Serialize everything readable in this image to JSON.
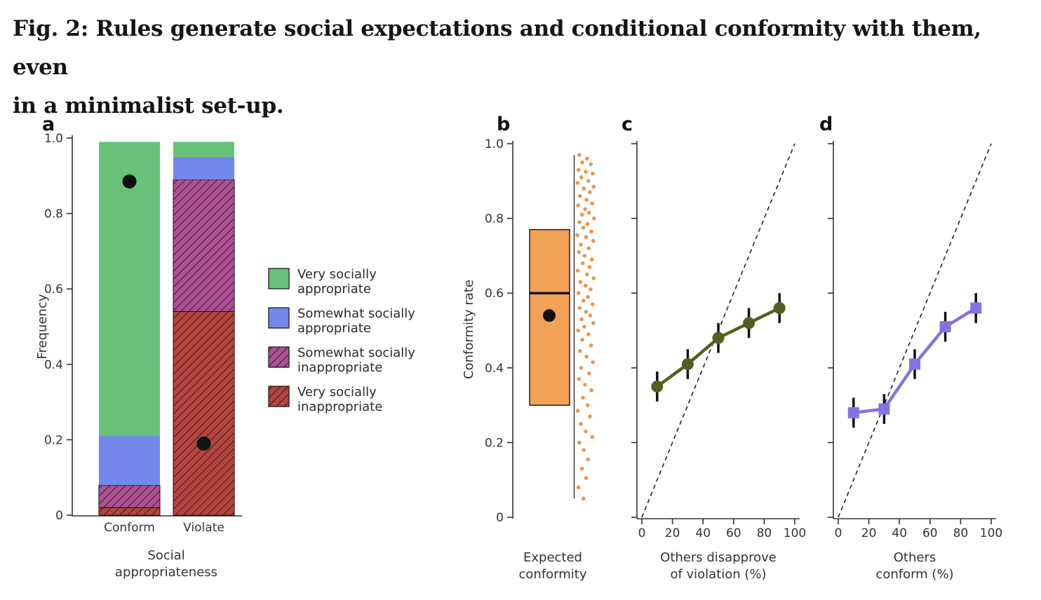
{
  "figure": {
    "title_lines": [
      "Fig. 2: Rules generate social expectations and conditional conformity with them, even",
      "in a minimalist set-up."
    ]
  },
  "panels": {
    "a": "a",
    "b": "b",
    "c": "c",
    "d": "d"
  },
  "chart_data": [
    {
      "id": "a",
      "type": "bar",
      "stacked": true,
      "ylabel": "Frequency",
      "xlabel_lines": [
        "Social",
        "appropriateness"
      ],
      "ylim": [
        0,
        1
      ],
      "yticks": [
        0,
        0.2,
        0.4,
        0.6,
        0.8,
        1
      ],
      "categories": [
        "Conform",
        "Violate"
      ],
      "series": [
        {
          "name": "Very socially inappropriate",
          "color": "#b5443c",
          "hatch": true,
          "values": [
            0.02,
            0.54
          ]
        },
        {
          "name": "Somewhat socially inappropriate",
          "color": "#ae4f92",
          "hatch": true,
          "values": [
            0.06,
            0.35
          ]
        },
        {
          "name": "Somewhat socially appropriate",
          "color": "#7288ea",
          "hatch": false,
          "values": [
            0.13,
            0.06
          ]
        },
        {
          "name": "Very socially appropriate",
          "color": "#68c178",
          "hatch": false,
          "values": [
            0.78,
            0.04
          ]
        }
      ],
      "mean_points": [
        0.885,
        0.19
      ],
      "legend": [
        {
          "lines": [
            "Very socially",
            "appropriate"
          ],
          "color": "#68c178",
          "hatch": false
        },
        {
          "lines": [
            "Somewhat socially",
            "appropriate"
          ],
          "color": "#7288ea",
          "hatch": false
        },
        {
          "lines": [
            "Somewhat socially",
            "inappropriate"
          ],
          "color": "#ae4f92",
          "hatch": true
        },
        {
          "lines": [
            "Very socially",
            "inappropriate"
          ],
          "color": "#b5443c",
          "hatch": true
        }
      ]
    },
    {
      "id": "b",
      "type": "box_scatter",
      "ylabel": "Conformity rate",
      "xlabel_lines": [
        "Expected",
        "conformity"
      ],
      "ylim": [
        0,
        1
      ],
      "yticks": [
        0,
        0.2,
        0.4,
        0.6,
        0.8,
        1
      ],
      "box": {
        "q1": 0.3,
        "median": 0.6,
        "q3": 0.77,
        "mean": 0.54,
        "whisker_low": 0.05,
        "whisker_high": 0.97,
        "fill": "#f2a257"
      },
      "point_color": "#f0944a",
      "points": [
        [
          0.14,
          0.97
        ],
        [
          0.55,
          0.96
        ],
        [
          0.3,
          0.95
        ],
        [
          0.75,
          0.945
        ],
        [
          0.1,
          0.93
        ],
        [
          0.48,
          0.925
        ],
        [
          0.85,
          0.92
        ],
        [
          0.25,
          0.91
        ],
        [
          0.62,
          0.9
        ],
        [
          0.05,
          0.895
        ],
        [
          0.9,
          0.885
        ],
        [
          0.38,
          0.88
        ],
        [
          0.7,
          0.87
        ],
        [
          0.18,
          0.86
        ],
        [
          0.52,
          0.85
        ],
        [
          0.82,
          0.84
        ],
        [
          0.08,
          0.835
        ],
        [
          0.45,
          0.825
        ],
        [
          0.66,
          0.815
        ],
        [
          0.28,
          0.81
        ],
        [
          0.92,
          0.8
        ],
        [
          0.15,
          0.79
        ],
        [
          0.58,
          0.785
        ],
        [
          0.35,
          0.775
        ],
        [
          0.78,
          0.765
        ],
        [
          0.04,
          0.755
        ],
        [
          0.5,
          0.75
        ],
        [
          0.88,
          0.74
        ],
        [
          0.22,
          0.73
        ],
        [
          0.64,
          0.72
        ],
        [
          0.12,
          0.71
        ],
        [
          0.42,
          0.7
        ],
        [
          0.8,
          0.69
        ],
        [
          0.32,
          0.68
        ],
        [
          0.68,
          0.67
        ],
        [
          0.06,
          0.66
        ],
        [
          0.55,
          0.65
        ],
        [
          0.9,
          0.64
        ],
        [
          0.2,
          0.63
        ],
        [
          0.47,
          0.62
        ],
        [
          0.74,
          0.61
        ],
        [
          0.1,
          0.6
        ],
        [
          0.6,
          0.59
        ],
        [
          0.36,
          0.58
        ],
        [
          0.84,
          0.57
        ],
        [
          0.16,
          0.56
        ],
        [
          0.5,
          0.55
        ],
        [
          0.72,
          0.54
        ],
        [
          0.26,
          0.53
        ],
        [
          0.88,
          0.52
        ],
        [
          0.4,
          0.51
        ],
        [
          0.08,
          0.5
        ],
        [
          0.62,
          0.49
        ],
        [
          0.3,
          0.475
        ],
        [
          0.76,
          0.46
        ],
        [
          0.18,
          0.445
        ],
        [
          0.52,
          0.43
        ],
        [
          0.86,
          0.415
        ],
        [
          0.24,
          0.4
        ],
        [
          0.66,
          0.385
        ],
        [
          0.12,
          0.37
        ],
        [
          0.44,
          0.355
        ],
        [
          0.78,
          0.34
        ],
        [
          0.34,
          0.32
        ],
        [
          0.58,
          0.3
        ],
        [
          0.06,
          0.285
        ],
        [
          0.7,
          0.27
        ],
        [
          0.22,
          0.25
        ],
        [
          0.48,
          0.23
        ],
        [
          0.82,
          0.215
        ],
        [
          0.14,
          0.2
        ],
        [
          0.38,
          0.18
        ],
        [
          0.6,
          0.155
        ],
        [
          0.28,
          0.13
        ],
        [
          0.5,
          0.105
        ],
        [
          0.1,
          0.08
        ],
        [
          0.36,
          0.05
        ]
      ]
    },
    {
      "id": "c",
      "type": "line",
      "xlabel_lines": [
        "Others disapprove",
        "of violation (%)"
      ],
      "xlim": [
        0,
        100
      ],
      "xticks": [
        0,
        20,
        40,
        60,
        80,
        100
      ],
      "ylim": [
        0,
        1
      ],
      "yticks": [
        0,
        0.2,
        0.4,
        0.6,
        0.8,
        1
      ],
      "x": [
        10,
        30,
        50,
        70,
        90
      ],
      "y": [
        0.35,
        0.41,
        0.48,
        0.52,
        0.56
      ],
      "yerr": [
        0.04,
        0.04,
        0.04,
        0.04,
        0.04
      ],
      "marker": "circle",
      "color": "#575d1f",
      "identity_line": true
    },
    {
      "id": "d",
      "type": "line",
      "xlabel_lines": [
        "Others",
        "conform (%)"
      ],
      "xlim": [
        0,
        100
      ],
      "xticks": [
        0,
        20,
        40,
        60,
        80,
        100
      ],
      "ylim": [
        0,
        1
      ],
      "yticks": [
        0,
        0.2,
        0.4,
        0.6,
        0.8,
        1
      ],
      "x": [
        10,
        30,
        50,
        70,
        90
      ],
      "y": [
        0.28,
        0.29,
        0.41,
        0.51,
        0.56
      ],
      "yerr": [
        0.04,
        0.04,
        0.04,
        0.04,
        0.04
      ],
      "marker": "square",
      "color": "#8273e3",
      "identity_line": true
    }
  ]
}
